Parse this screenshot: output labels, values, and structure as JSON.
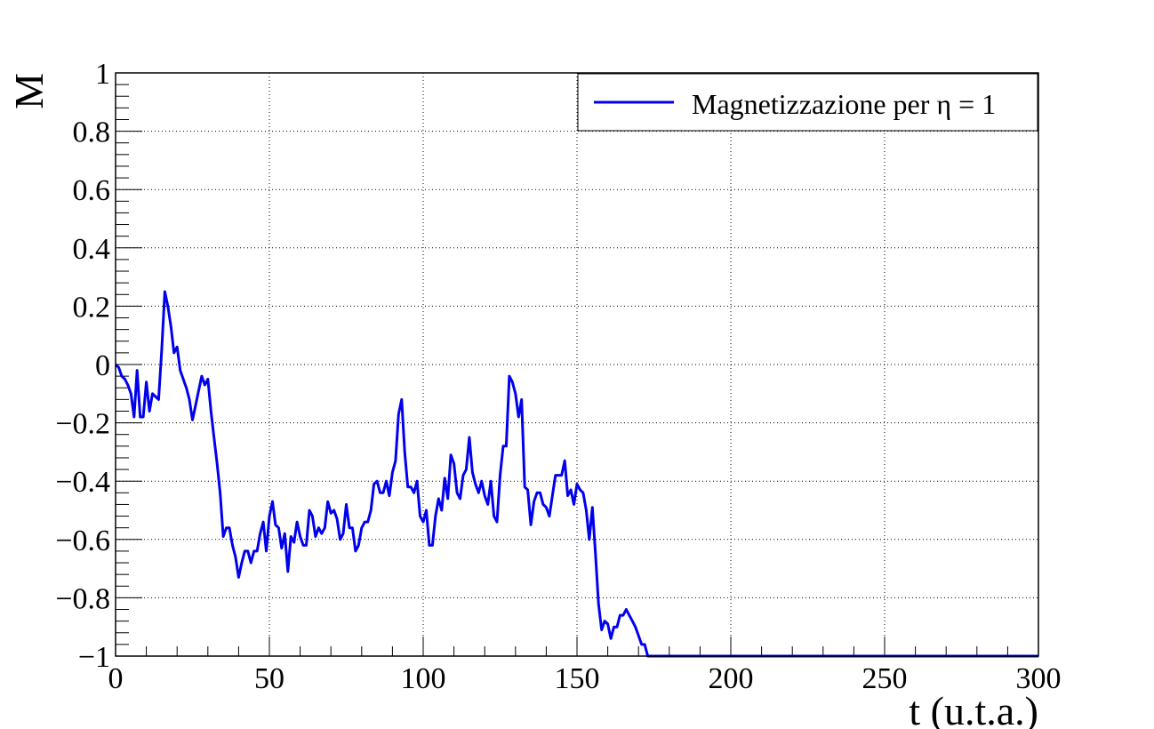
{
  "chart_data": {
    "type": "line",
    "title": "",
    "xlabel": "t (u.t.a.)",
    "ylabel": "M",
    "xlim": [
      0,
      300
    ],
    "ylim": [
      -1,
      1
    ],
    "grid": true,
    "x_ticks": [
      0,
      50,
      100,
      150,
      200,
      250,
      300
    ],
    "x_tick_labels": [
      "0",
      "50",
      "100",
      "150",
      "200",
      "250",
      "300"
    ],
    "y_ticks": [
      1,
      0.8,
      0.6,
      0.4,
      0.2,
      0,
      -0.2,
      -0.4,
      -0.6,
      -0.8,
      -1
    ],
    "y_tick_labels": [
      "1",
      "0.8",
      "0.6",
      "0.4",
      "0.2",
      "0",
      "−0.2",
      "−0.4",
      "−0.6",
      "−0.8",
      "−1"
    ],
    "legend": {
      "position": "top-right",
      "label": "Magnetizzazione per η = 1"
    },
    "series": [
      {
        "name": "Magnetizzazione per η = 1",
        "color": "#0000ee",
        "points": [
          [
            0,
            0.0
          ],
          [
            1,
            -0.01
          ],
          [
            2,
            -0.04
          ],
          [
            3,
            -0.05
          ],
          [
            4,
            -0.07
          ],
          [
            5,
            -0.1
          ],
          [
            6,
            -0.18
          ],
          [
            7,
            -0.02
          ],
          [
            8,
            -0.18
          ],
          [
            9,
            -0.18
          ],
          [
            10,
            -0.06
          ],
          [
            11,
            -0.16
          ],
          [
            12,
            -0.1
          ],
          [
            13,
            -0.11
          ],
          [
            14,
            -0.12
          ],
          [
            15,
            0.05
          ],
          [
            16,
            0.25
          ],
          [
            17,
            0.2
          ],
          [
            18,
            0.13
          ],
          [
            19,
            0.04
          ],
          [
            20,
            0.06
          ],
          [
            21,
            -0.02
          ],
          [
            22,
            -0.05
          ],
          [
            23,
            -0.08
          ],
          [
            24,
            -0.12
          ],
          [
            25,
            -0.19
          ],
          [
            26,
            -0.14
          ],
          [
            27,
            -0.09
          ],
          [
            28,
            -0.04
          ],
          [
            29,
            -0.07
          ],
          [
            30,
            -0.05
          ],
          [
            31,
            -0.16
          ],
          [
            32,
            -0.25
          ],
          [
            33,
            -0.34
          ],
          [
            34,
            -0.44
          ],
          [
            35,
            -0.59
          ],
          [
            36,
            -0.56
          ],
          [
            37,
            -0.56
          ],
          [
            38,
            -0.62
          ],
          [
            39,
            -0.66
          ],
          [
            40,
            -0.73
          ],
          [
            41,
            -0.68
          ],
          [
            42,
            -0.64
          ],
          [
            43,
            -0.64
          ],
          [
            44,
            -0.68
          ],
          [
            45,
            -0.64
          ],
          [
            46,
            -0.64
          ],
          [
            47,
            -0.58
          ],
          [
            48,
            -0.54
          ],
          [
            49,
            -0.64
          ],
          [
            50,
            -0.52
          ],
          [
            51,
            -0.47
          ],
          [
            52,
            -0.55
          ],
          [
            53,
            -0.56
          ],
          [
            54,
            -0.63
          ],
          [
            55,
            -0.58
          ],
          [
            56,
            -0.71
          ],
          [
            57,
            -0.59
          ],
          [
            58,
            -0.61
          ],
          [
            59,
            -0.54
          ],
          [
            60,
            -0.59
          ],
          [
            61,
            -0.62
          ],
          [
            62,
            -0.62
          ],
          [
            63,
            -0.5
          ],
          [
            64,
            -0.52
          ],
          [
            65,
            -0.59
          ],
          [
            66,
            -0.56
          ],
          [
            67,
            -0.58
          ],
          [
            68,
            -0.56
          ],
          [
            69,
            -0.47
          ],
          [
            70,
            -0.51
          ],
          [
            71,
            -0.5
          ],
          [
            72,
            -0.53
          ],
          [
            73,
            -0.6
          ],
          [
            74,
            -0.58
          ],
          [
            75,
            -0.48
          ],
          [
            76,
            -0.56
          ],
          [
            77,
            -0.56
          ],
          [
            78,
            -0.64
          ],
          [
            79,
            -0.62
          ],
          [
            80,
            -0.56
          ],
          [
            81,
            -0.54
          ],
          [
            82,
            -0.54
          ],
          [
            83,
            -0.5
          ],
          [
            84,
            -0.41
          ],
          [
            85,
            -0.4
          ],
          [
            86,
            -0.44
          ],
          [
            87,
            -0.44
          ],
          [
            88,
            -0.4
          ],
          [
            89,
            -0.45
          ],
          [
            90,
            -0.37
          ],
          [
            91,
            -0.33
          ],
          [
            92,
            -0.17
          ],
          [
            93,
            -0.12
          ],
          [
            94,
            -0.3
          ],
          [
            95,
            -0.42
          ],
          [
            96,
            -0.42
          ],
          [
            97,
            -0.44
          ],
          [
            98,
            -0.4
          ],
          [
            99,
            -0.52
          ],
          [
            100,
            -0.54
          ],
          [
            101,
            -0.5
          ],
          [
            102,
            -0.62
          ],
          [
            103,
            -0.62
          ],
          [
            104,
            -0.52
          ],
          [
            105,
            -0.46
          ],
          [
            106,
            -0.5
          ],
          [
            107,
            -0.39
          ],
          [
            108,
            -0.46
          ],
          [
            109,
            -0.31
          ],
          [
            110,
            -0.34
          ],
          [
            111,
            -0.44
          ],
          [
            112,
            -0.46
          ],
          [
            113,
            -0.38
          ],
          [
            114,
            -0.36
          ],
          [
            115,
            -0.25
          ],
          [
            116,
            -0.37
          ],
          [
            117,
            -0.41
          ],
          [
            118,
            -0.44
          ],
          [
            119,
            -0.4
          ],
          [
            120,
            -0.45
          ],
          [
            121,
            -0.48
          ],
          [
            122,
            -0.4
          ],
          [
            123,
            -0.52
          ],
          [
            124,
            -0.54
          ],
          [
            125,
            -0.38
          ],
          [
            126,
            -0.28
          ],
          [
            127,
            -0.28
          ],
          [
            128,
            -0.04
          ],
          [
            129,
            -0.06
          ],
          [
            130,
            -0.1
          ],
          [
            131,
            -0.18
          ],
          [
            132,
            -0.12
          ],
          [
            133,
            -0.42
          ],
          [
            134,
            -0.43
          ],
          [
            135,
            -0.55
          ],
          [
            136,
            -0.47
          ],
          [
            137,
            -0.44
          ],
          [
            138,
            -0.44
          ],
          [
            139,
            -0.48
          ],
          [
            140,
            -0.49
          ],
          [
            141,
            -0.52
          ],
          [
            142,
            -0.45
          ],
          [
            143,
            -0.38
          ],
          [
            144,
            -0.38
          ],
          [
            145,
            -0.38
          ],
          [
            146,
            -0.33
          ],
          [
            147,
            -0.45
          ],
          [
            148,
            -0.43
          ],
          [
            149,
            -0.48
          ],
          [
            150,
            -0.41
          ],
          [
            151,
            -0.43
          ],
          [
            152,
            -0.44
          ],
          [
            153,
            -0.5
          ],
          [
            154,
            -0.6
          ],
          [
            155,
            -0.49
          ],
          [
            156,
            -0.65
          ],
          [
            157,
            -0.82
          ],
          [
            158,
            -0.91
          ],
          [
            159,
            -0.88
          ],
          [
            160,
            -0.89
          ],
          [
            161,
            -0.94
          ],
          [
            162,
            -0.9
          ],
          [
            163,
            -0.9
          ],
          [
            164,
            -0.86
          ],
          [
            165,
            -0.86
          ],
          [
            166,
            -0.84
          ],
          [
            167,
            -0.86
          ],
          [
            168,
            -0.88
          ],
          [
            169,
            -0.9
          ],
          [
            170,
            -0.93
          ],
          [
            171,
            -0.96
          ],
          [
            172,
            -0.96
          ],
          [
            173,
            -1.0
          ],
          [
            180,
            -1.0
          ],
          [
            200,
            -1.0
          ],
          [
            250,
            -1.0
          ],
          [
            300,
            -1.0
          ]
        ]
      }
    ]
  }
}
